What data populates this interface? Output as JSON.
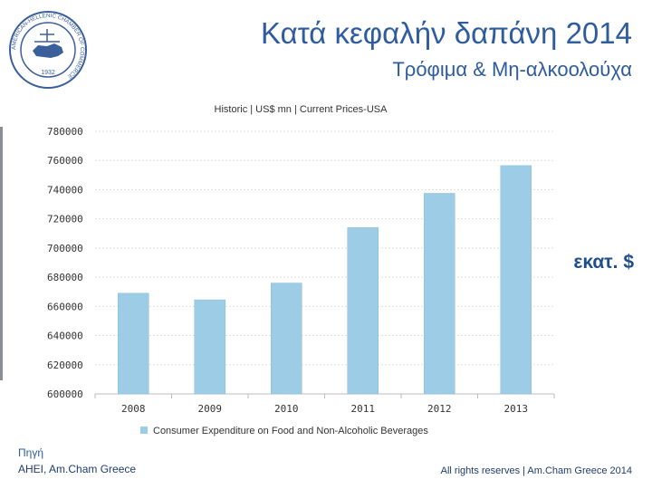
{
  "header": {
    "title": "Κατά κεφαλήν δαπάνη 2014",
    "subtitle": "Τρόφιμα & Μη-αλκοολούχα"
  },
  "logo": {
    "ring_text": "AMERICAN-HELLENIC CHAMBER OF COMMERCE",
    "year": "1932",
    "color": "#3b5f9a"
  },
  "unit_label": "εκατ. $",
  "source": {
    "heading": "Πηγή",
    "text": "AHEI, Am.Cham Greece"
  },
  "rights": "All rights reserves | Am.Cham Greece 2014",
  "chart_data": {
    "type": "bar",
    "title": "Historic | US$ mn | Current Prices-USA",
    "categories": [
      "2008",
      "2009",
      "2010",
      "2011",
      "2012",
      "2013"
    ],
    "series": [
      {
        "name": "Consumer Expenditure on Food and Non-Alcoholic Beverages",
        "values": [
          669000,
          664500,
          676000,
          714000,
          737500,
          756500
        ],
        "color": "#9dcde6"
      }
    ],
    "yticks": [
      "600000",
      "620000",
      "640000",
      "660000",
      "680000",
      "700000",
      "720000",
      "740000",
      "760000",
      "780000"
    ],
    "ylim": [
      600000,
      780000
    ],
    "grid": true,
    "legend": "bottom"
  }
}
